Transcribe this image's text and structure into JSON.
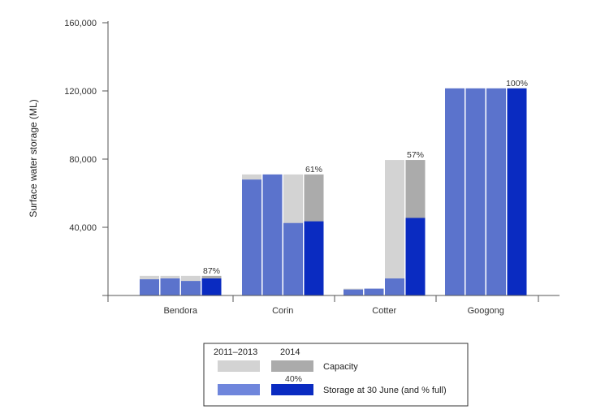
{
  "chart_data": {
    "type": "bar",
    "ylabel": "Surface water storage (ML)",
    "ylim": [
      0,
      160000
    ],
    "yticks": [
      0,
      40000,
      80000,
      120000,
      160000
    ],
    "ytick_labels": [
      "",
      "40,000",
      "80,000",
      "120,000",
      "160,000"
    ],
    "categories": [
      "Bendora",
      "Corin",
      "Cotter",
      "Googong"
    ],
    "periods": [
      "2011",
      "2012",
      "2013",
      "2014"
    ],
    "capacity": [
      [
        11500,
        11500,
        11500,
        11500
      ],
      [
        71000,
        71000,
        71000,
        71000
      ],
      [
        4000,
        4000,
        79500,
        79500
      ],
      [
        121500,
        121500,
        121500,
        121500
      ]
    ],
    "storage": [
      [
        9500,
        10000,
        8500,
        10000
      ],
      [
        68000,
        71000,
        42500,
        43500
      ],
      [
        3500,
        4000,
        10000,
        45500
      ],
      [
        121500,
        121500,
        121500,
        121500
      ]
    ],
    "percent_full_labels": [
      "87%",
      "61%",
      "57%",
      "100%"
    ],
    "colors": {
      "capacity_past": "#d3d3d3",
      "capacity_2014": "#ababab",
      "storage_past": "#5b73cc",
      "storage_2014": "#0a2bc1",
      "axis": "#555555"
    },
    "legend": {
      "header_past": "2011–2013",
      "header_2014": "2014",
      "capacity_label": "Capacity",
      "storage_label": "Storage at 30 June (and % full)",
      "example_pct": "40%",
      "placement": "bottom-center"
    }
  }
}
